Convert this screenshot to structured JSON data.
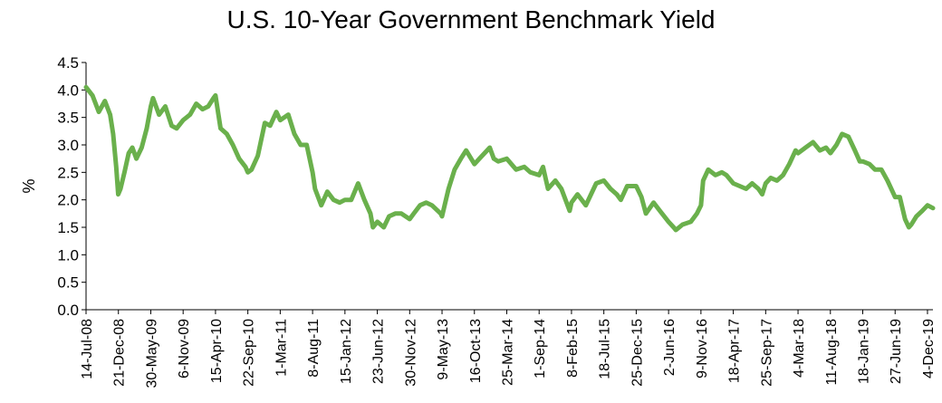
{
  "chart_data": {
    "type": "line",
    "title": "U.S. 10-Year Government Benchmark Yield",
    "ylabel": "%",
    "xlabel": "",
    "ylim": [
      0,
      4.5
    ],
    "yticks": [
      "0.0",
      "0.5",
      "1.0",
      "1.5",
      "2.0",
      "2.5",
      "3.0",
      "3.5",
      "4.0",
      "4.5"
    ],
    "grid": false,
    "legend": "none",
    "line_color": "#6ab04c",
    "xrange": [
      "2008-07-14",
      "2019-12-31"
    ],
    "xticks": [
      {
        "label": "14-Jul-08",
        "date": "2008-07-14"
      },
      {
        "label": "21-Dec-08",
        "date": "2008-12-21"
      },
      {
        "label": "30-May-09",
        "date": "2009-05-30"
      },
      {
        "label": "6-Nov-09",
        "date": "2009-11-06"
      },
      {
        "label": "15-Apr-10",
        "date": "2010-04-15"
      },
      {
        "label": "22-Sep-10",
        "date": "2010-09-22"
      },
      {
        "label": "1-Mar-11",
        "date": "2011-03-01"
      },
      {
        "label": "8-Aug-11",
        "date": "2011-08-08"
      },
      {
        "label": "15-Jan-12",
        "date": "2012-01-15"
      },
      {
        "label": "23-Jun-12",
        "date": "2012-06-23"
      },
      {
        "label": "30-Nov-12",
        "date": "2012-11-30"
      },
      {
        "label": "9-May-13",
        "date": "2013-05-09"
      },
      {
        "label": "16-Oct-13",
        "date": "2013-10-16"
      },
      {
        "label": "25-Mar-14",
        "date": "2014-03-25"
      },
      {
        "label": "1-Sep-14",
        "date": "2014-09-01"
      },
      {
        "label": "8-Feb-15",
        "date": "2015-02-08"
      },
      {
        "label": "18-Jul-15",
        "date": "2015-07-18"
      },
      {
        "label": "25-Dec-15",
        "date": "2015-12-25"
      },
      {
        "label": "2-Jun-16",
        "date": "2016-06-02"
      },
      {
        "label": "9-Nov-16",
        "date": "2016-11-09"
      },
      {
        "label": "18-Apr-17",
        "date": "2017-04-18"
      },
      {
        "label": "25-Sep-17",
        "date": "2017-09-25"
      },
      {
        "label": "4-Mar-18",
        "date": "2018-03-04"
      },
      {
        "label": "11-Aug-18",
        "date": "2018-08-11"
      },
      {
        "label": "18-Jan-19",
        "date": "2019-01-18"
      },
      {
        "label": "27-Jun-19",
        "date": "2019-06-27"
      },
      {
        "label": "4-Dec-19",
        "date": "2019-12-04"
      }
    ],
    "series": [
      {
        "x": [
          "2008-07-14",
          "2008-08-15",
          "2008-09-15",
          "2008-10-15",
          "2008-11-10",
          "2008-11-25",
          "2008-12-10",
          "2008-12-20",
          "2008-12-31",
          "2009-01-20",
          "2009-02-10",
          "2009-02-28",
          "2009-03-20",
          "2009-04-15",
          "2009-05-10",
          "2009-05-30",
          "2009-06-10",
          "2009-07-10",
          "2009-08-10",
          "2009-09-10",
          "2009-10-05",
          "2009-11-06",
          "2009-12-10",
          "2010-01-10",
          "2010-02-10",
          "2010-03-10",
          "2010-04-05",
          "2010-04-15",
          "2010-05-10",
          "2010-06-10",
          "2010-07-10",
          "2010-08-10",
          "2010-09-10",
          "2010-09-22",
          "2010-10-10",
          "2010-11-10",
          "2010-12-15",
          "2011-01-10",
          "2011-02-10",
          "2011-03-01",
          "2011-04-10",
          "2011-05-10",
          "2011-06-10",
          "2011-07-10",
          "2011-08-08",
          "2011-08-20",
          "2011-09-20",
          "2011-10-20",
          "2011-11-20",
          "2011-12-20",
          "2012-01-15",
          "2012-02-15",
          "2012-03-20",
          "2012-04-20",
          "2012-05-20",
          "2012-06-01",
          "2012-06-23",
          "2012-07-25",
          "2012-08-20",
          "2012-09-20",
          "2012-10-20",
          "2012-11-30",
          "2012-12-20",
          "2013-01-20",
          "2013-02-20",
          "2013-03-20",
          "2013-05-02",
          "2013-05-09",
          "2013-06-10",
          "2013-07-10",
          "2013-08-10",
          "2013-09-05",
          "2013-10-16",
          "2013-11-10",
          "2013-12-31",
          "2014-01-20",
          "2014-02-10",
          "2014-03-25",
          "2014-05-10",
          "2014-06-20",
          "2014-07-20",
          "2014-09-01",
          "2014-09-20",
          "2014-10-15",
          "2014-11-20",
          "2014-12-20",
          "2015-01-30",
          "2015-02-08",
          "2015-03-10",
          "2015-04-20",
          "2015-06-10",
          "2015-07-18",
          "2015-08-20",
          "2015-09-20",
          "2015-10-10",
          "2015-11-10",
          "2015-12-25",
          "2016-01-20",
          "2016-02-11",
          "2016-03-20",
          "2016-04-20",
          "2016-06-02",
          "2016-06-27",
          "2016-07-08",
          "2016-08-10",
          "2016-09-20",
          "2016-10-20",
          "2016-11-09",
          "2016-11-20",
          "2016-12-15",
          "2017-01-20",
          "2017-02-20",
          "2017-03-15",
          "2017-04-18",
          "2017-05-20",
          "2017-06-20",
          "2017-07-20",
          "2017-08-20",
          "2017-09-08",
          "2017-09-25",
          "2017-10-20",
          "2017-11-20",
          "2017-12-20",
          "2018-01-20",
          "2018-02-20",
          "2018-03-04",
          "2018-04-10",
          "2018-05-17",
          "2018-06-20",
          "2018-07-20",
          "2018-08-11",
          "2018-09-10",
          "2018-10-08",
          "2018-11-08",
          "2018-12-10",
          "2019-01-03",
          "2019-01-18",
          "2019-02-20",
          "2019-03-20",
          "2019-04-20",
          "2019-05-20",
          "2019-06-27",
          "2019-07-20",
          "2019-08-15",
          "2019-09-03",
          "2019-09-15",
          "2019-10-10",
          "2019-11-08",
          "2019-12-04",
          "2019-12-31"
        ],
        "y": [
          4.05,
          3.9,
          3.6,
          3.8,
          3.55,
          3.2,
          2.6,
          2.1,
          2.2,
          2.5,
          2.85,
          2.95,
          2.75,
          2.95,
          3.3,
          3.7,
          3.85,
          3.55,
          3.7,
          3.35,
          3.3,
          3.45,
          3.55,
          3.75,
          3.65,
          3.7,
          3.85,
          3.9,
          3.3,
          3.2,
          3.0,
          2.75,
          2.6,
          2.5,
          2.55,
          2.8,
          3.4,
          3.35,
          3.6,
          3.45,
          3.55,
          3.2,
          3.0,
          3.0,
          2.5,
          2.2,
          1.9,
          2.15,
          2.0,
          1.95,
          2.0,
          2.0,
          2.3,
          2.0,
          1.75,
          1.5,
          1.6,
          1.5,
          1.7,
          1.75,
          1.75,
          1.65,
          1.75,
          1.9,
          1.95,
          1.9,
          1.75,
          1.7,
          2.2,
          2.55,
          2.75,
          2.9,
          2.65,
          2.75,
          2.95,
          2.75,
          2.7,
          2.75,
          2.55,
          2.6,
          2.5,
          2.45,
          2.6,
          2.2,
          2.35,
          2.2,
          1.8,
          1.95,
          2.1,
          1.9,
          2.3,
          2.35,
          2.2,
          2.1,
          2.0,
          2.25,
          2.25,
          2.05,
          1.75,
          1.95,
          1.8,
          1.6,
          1.5,
          1.45,
          1.55,
          1.6,
          1.75,
          1.9,
          2.35,
          2.55,
          2.45,
          2.5,
          2.45,
          2.3,
          2.25,
          2.2,
          2.3,
          2.2,
          2.1,
          2.3,
          2.4,
          2.35,
          2.45,
          2.65,
          2.9,
          2.85,
          2.95,
          3.05,
          2.9,
          2.95,
          2.85,
          3.0,
          3.2,
          3.15,
          2.9,
          2.7,
          2.7,
          2.65,
          2.55,
          2.55,
          2.35,
          2.05,
          2.05,
          1.65,
          1.5,
          1.55,
          1.7,
          1.8,
          1.9,
          1.85
        ]
      }
    ]
  }
}
